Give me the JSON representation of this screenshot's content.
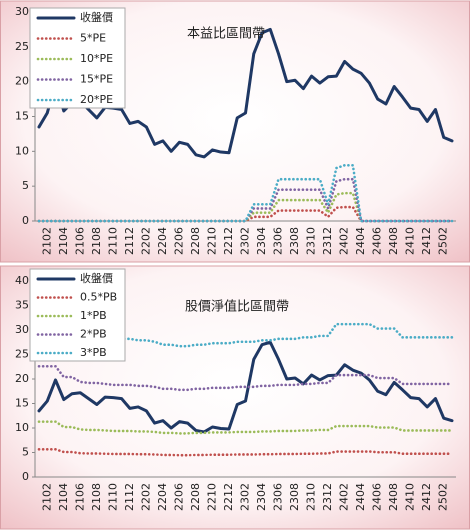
{
  "chart_data": [
    {
      "type": "line",
      "title": "本益比區間帶",
      "categories": [
        null,
        "2102",
        null,
        "2104",
        null,
        "2106",
        null,
        "2108",
        null,
        "2110",
        null,
        "2112",
        null,
        "2202",
        null,
        "2204",
        null,
        "2206",
        null,
        "2208",
        null,
        "2210",
        null,
        "2212",
        null,
        "2302",
        null,
        "2304",
        null,
        "2306",
        null,
        "2308",
        null,
        "2310",
        null,
        "2312",
        null,
        "2402",
        null,
        "2404",
        null,
        "2406",
        null,
        "2408",
        null,
        "2410",
        null,
        "2412",
        null,
        "2502",
        null
      ],
      "ylim": [
        0,
        30
      ],
      "yticks": [
        0,
        5,
        10,
        15,
        20,
        25,
        30
      ],
      "series": [
        {
          "name": "收盤價",
          "color": "#1f3864",
          "values": [
            13.5,
            15.5,
            19.8,
            15.8,
            17,
            17.2,
            16,
            14.8,
            16.3,
            16.2,
            16,
            14,
            14.3,
            13.5,
            11,
            11.5,
            10,
            11.3,
            11,
            9.5,
            9.2,
            10.2,
            9.9,
            9.8,
            14.8,
            15.5,
            24,
            27,
            27.5,
            24,
            20,
            20.2,
            19,
            20.8,
            19.8,
            20.7,
            20.8,
            22.9,
            21.8,
            21.2,
            19.8,
            17.5,
            16.8,
            19.3,
            17.8,
            16.2,
            16,
            14.3,
            16,
            12,
            11.5
          ]
        },
        {
          "name": "5*PE",
          "color": "#c0504d",
          "values": [
            0,
            0,
            0,
            0,
            0,
            0,
            0,
            0,
            0,
            0,
            0,
            0,
            0,
            0,
            0,
            0,
            0,
            0,
            0,
            0,
            0,
            0,
            0,
            0,
            0,
            0,
            0.6,
            0.6,
            0.6,
            1.5,
            1.5,
            1.5,
            1.5,
            1.5,
            1.5,
            0.6,
            1.9,
            2,
            2,
            0,
            0,
            0,
            0,
            0,
            0,
            0,
            0,
            0,
            0,
            0,
            0
          ]
        },
        {
          "name": "10*PE",
          "color": "#9bbb59",
          "values": [
            0,
            0,
            0,
            0,
            0,
            0,
            0,
            0,
            0,
            0,
            0,
            0,
            0,
            0,
            0,
            0,
            0,
            0,
            0,
            0,
            0,
            0,
            0,
            0,
            0,
            0,
            1.2,
            1.2,
            1.2,
            3,
            3,
            3,
            3,
            3,
            3,
            1.2,
            3.8,
            4,
            4,
            0,
            0,
            0,
            0,
            0,
            0,
            0,
            0,
            0,
            0,
            0,
            0
          ]
        },
        {
          "name": "15*PE",
          "color": "#8064a2",
          "values": [
            0,
            0,
            0,
            0,
            0,
            0,
            0,
            0,
            0,
            0,
            0,
            0,
            0,
            0,
            0,
            0,
            0,
            0,
            0,
            0,
            0,
            0,
            0,
            0,
            0,
            0,
            1.8,
            1.8,
            1.8,
            4.5,
            4.5,
            4.5,
            4.5,
            4.5,
            4.5,
            1.8,
            5.7,
            6,
            6,
            0,
            0,
            0,
            0,
            0,
            0,
            0,
            0,
            0,
            0,
            0,
            0
          ]
        },
        {
          "name": "20*PE",
          "color": "#4bacc6",
          "values": [
            0,
            0,
            0,
            0,
            0,
            0,
            0,
            0,
            0,
            0,
            0,
            0,
            0,
            0,
            0,
            0,
            0,
            0,
            0,
            0,
            0,
            0,
            0,
            0,
            0,
            0,
            2.4,
            2.4,
            2.4,
            6,
            6,
            6,
            6,
            6,
            6,
            2.4,
            7.6,
            8,
            8,
            0,
            0,
            0,
            0,
            0,
            0,
            0,
            0,
            0,
            0,
            0,
            0
          ]
        }
      ]
    },
    {
      "type": "line",
      "title": "股價淨值比區間帶",
      "categories": [
        null,
        "2102",
        null,
        "2104",
        null,
        "2106",
        null,
        "2108",
        null,
        "2110",
        null,
        "2112",
        null,
        "2202",
        null,
        "2204",
        null,
        "2206",
        null,
        "2208",
        null,
        "2210",
        null,
        "2212",
        null,
        "2302",
        null,
        "2304",
        null,
        "2306",
        null,
        "2308",
        null,
        "2310",
        null,
        "2312",
        null,
        "2402",
        null,
        "2404",
        null,
        "2406",
        null,
        "2408",
        null,
        "2410",
        null,
        "2412",
        null,
        "2502",
        null
      ],
      "ylim": [
        0,
        40
      ],
      "yticks": [
        0,
        5,
        10,
        15,
        20,
        25,
        30,
        35,
        40
      ],
      "series": [
        {
          "name": "收盤價",
          "color": "#1f3864",
          "values": [
            13.5,
            15.5,
            19.8,
            15.8,
            17,
            17.2,
            16,
            14.8,
            16.3,
            16.2,
            16,
            14,
            14.3,
            13.5,
            11,
            11.5,
            10,
            11.3,
            11,
            9.5,
            9.2,
            10.2,
            9.9,
            9.8,
            14.8,
            15.5,
            24,
            27,
            27.5,
            24,
            20,
            20.2,
            19,
            20.8,
            19.8,
            20.7,
            20.8,
            22.9,
            21.8,
            21.2,
            19.8,
            17.5,
            16.8,
            19.3,
            17.8,
            16.2,
            16,
            14.3,
            16,
            12,
            11.5
          ]
        },
        {
          "name": "0.5*PB",
          "color": "#c0504d",
          "values": [
            5.65,
            5.65,
            5.65,
            5.1,
            5.1,
            4.85,
            4.8,
            4.8,
            4.75,
            4.7,
            4.7,
            4.7,
            4.65,
            4.65,
            4.6,
            4.5,
            4.5,
            4.45,
            4.45,
            4.5,
            4.5,
            4.55,
            4.55,
            4.55,
            4.6,
            4.6,
            4.6,
            4.65,
            4.65,
            4.7,
            4.7,
            4.7,
            4.75,
            4.75,
            4.8,
            4.8,
            5.2,
            5.2,
            5.2,
            5.2,
            5.2,
            5.05,
            5.05,
            5.05,
            4.75,
            4.75,
            4.75,
            4.75,
            4.75,
            4.75,
            4.75
          ]
        },
        {
          "name": "1*PB",
          "color": "#9bbb59",
          "values": [
            11.3,
            11.3,
            11.3,
            10.2,
            10.2,
            9.7,
            9.6,
            9.6,
            9.5,
            9.4,
            9.4,
            9.4,
            9.3,
            9.3,
            9.2,
            9,
            9,
            8.9,
            8.9,
            9,
            9,
            9.1,
            9.1,
            9.1,
            9.2,
            9.2,
            9.2,
            9.3,
            9.3,
            9.4,
            9.4,
            9.4,
            9.5,
            9.5,
            9.6,
            9.6,
            10.4,
            10.4,
            10.4,
            10.4,
            10.4,
            10.1,
            10.1,
            10.1,
            9.5,
            9.5,
            9.5,
            9.5,
            9.5,
            9.5,
            9.5
          ]
        },
        {
          "name": "2*PB",
          "color": "#8064a2",
          "values": [
            22.6,
            22.6,
            22.6,
            20.4,
            20.4,
            19.4,
            19.2,
            19.2,
            19,
            18.8,
            18.8,
            18.8,
            18.6,
            18.6,
            18.4,
            18,
            18,
            17.8,
            17.8,
            18,
            18,
            18.2,
            18.2,
            18.2,
            18.4,
            18.4,
            18.4,
            18.6,
            18.6,
            18.8,
            18.8,
            18.8,
            19,
            19,
            19.2,
            19.2,
            20.8,
            20.8,
            20.8,
            20.8,
            20.8,
            20.2,
            20.2,
            20.2,
            19,
            19,
            19,
            19,
            19,
            19,
            19
          ]
        },
        {
          "name": "3*PB",
          "color": "#4bacc6",
          "values": [
            33.9,
            33.9,
            33.9,
            30.6,
            30.6,
            29.1,
            28.8,
            28.8,
            28.5,
            28.2,
            28.2,
            28.2,
            27.9,
            27.9,
            27.6,
            27,
            27,
            26.7,
            26.7,
            27,
            27,
            27.3,
            27.3,
            27.3,
            27.6,
            27.6,
            27.6,
            27.9,
            27.9,
            28.2,
            28.2,
            28.2,
            28.5,
            28.5,
            28.8,
            28.8,
            31.2,
            31.2,
            31.2,
            31.2,
            31.2,
            30.3,
            30.3,
            30.3,
            28.5,
            28.5,
            28.5,
            28.5,
            28.5,
            28.5,
            28.5
          ]
        }
      ]
    }
  ]
}
